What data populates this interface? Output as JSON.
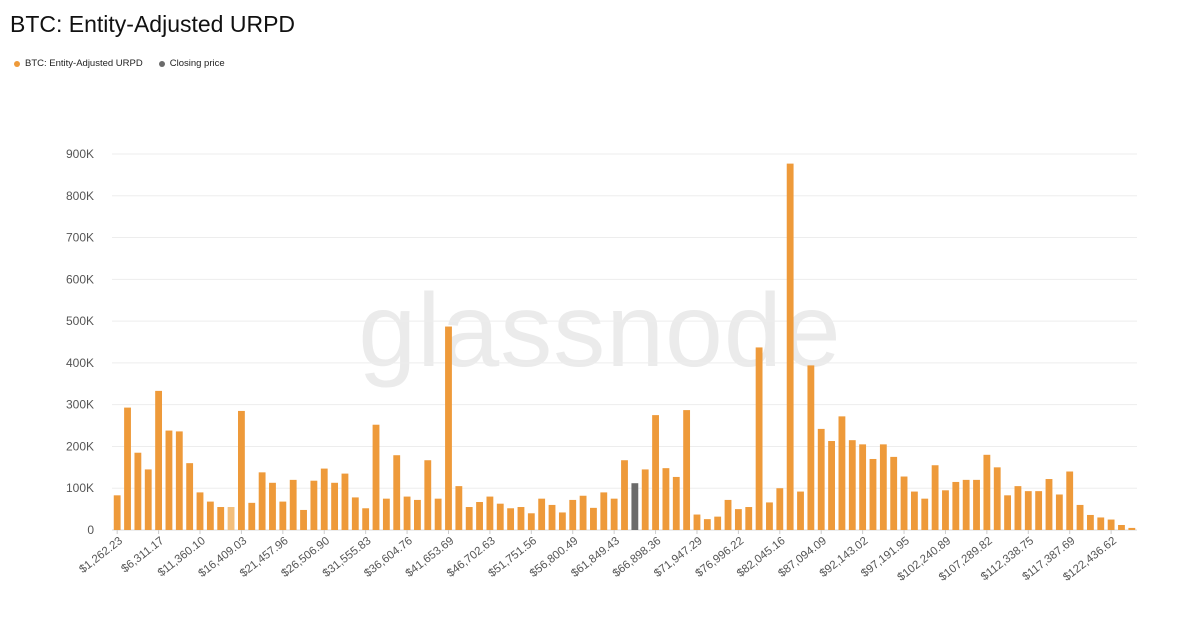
{
  "title": "BTC: Entity-Adjusted URPD",
  "legend": [
    {
      "label": "BTC: Entity-Adjusted URPD",
      "color": "#ee9a3a"
    },
    {
      "label": "Closing price",
      "color": "#6b6b6b"
    }
  ],
  "watermark": "glassnode",
  "chart_data": {
    "type": "bar",
    "ylim": [
      0,
      900000
    ],
    "yticks": [
      "0",
      "100K",
      "200K",
      "300K",
      "400K",
      "500K",
      "600K",
      "700K",
      "800K",
      "900K"
    ],
    "grid": true,
    "legend_position": "top-left",
    "xtick_labels": [
      "$1,262.23",
      "$6,311.17",
      "$11,360.10",
      "$16,409.03",
      "$21,457.96",
      "$26,506.90",
      "$31,555.83",
      "$36,604.76",
      "$41,653.69",
      "$46,702.63",
      "$51,751.56",
      "$56,800.49",
      "$61,849.43",
      "$66,898.36",
      "$71,947.29",
      "$76,996.22",
      "$82,045.16",
      "$87,094.09",
      "$92,143.02",
      "$97,191.95",
      "$102,240.89",
      "$107,289.82",
      "$112,338.75",
      "$117,387.69",
      "$122,436.62"
    ],
    "series": [
      {
        "name": "BTC: Entity-Adjusted URPD",
        "color": "#ee9a3a",
        "values": [
          83000,
          293000,
          185000,
          145000,
          333000,
          238000,
          236000,
          160000,
          90000,
          68000,
          55000,
          55000,
          285000,
          65000,
          138000,
          113000,
          68000,
          120000,
          48000,
          118000,
          147000,
          113000,
          135000,
          78000,
          52000,
          252000,
          75000,
          179000,
          80000,
          72000,
          167000,
          75000,
          487000,
          105000,
          55000,
          67000,
          80000,
          63000,
          52000,
          55000,
          40000,
          75000,
          60000,
          42000,
          72000,
          82000,
          53000,
          90000,
          75000,
          167000,
          112000,
          145000,
          275000,
          148000,
          127000,
          287000,
          37000,
          26000,
          32000,
          72000,
          50000,
          55000,
          437000,
          66000,
          100000,
          877000,
          92000,
          394000,
          242000,
          213000,
          272000,
          215000,
          205000,
          170000,
          205000,
          175000,
          128000,
          92000,
          75000,
          155000,
          95000,
          115000,
          120000,
          120000,
          180000,
          150000,
          83000,
          105000,
          93000,
          93000,
          122000,
          85000,
          140000,
          60000,
          36000,
          30000,
          25000,
          12000,
          5000
        ]
      }
    ],
    "highlight_indices": {
      "closing_price": 50,
      "light": 11
    }
  }
}
